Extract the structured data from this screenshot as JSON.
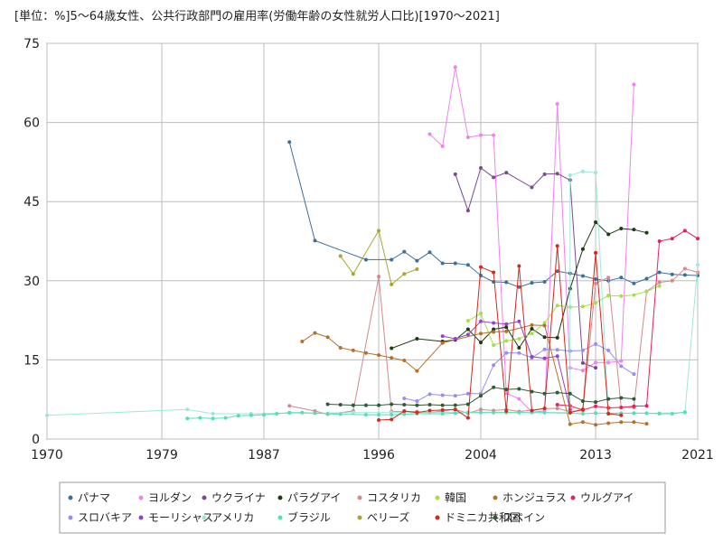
{
  "chart_data": {
    "type": "line",
    "title": "[単位：%]5～64歳女性、公共行政部門の雇用率(労働年齢の女性就労人口比)[1970～2021]",
    "xlabel": "",
    "ylabel": "",
    "xlim": [
      1970,
      2021
    ],
    "ylim": [
      0,
      75
    ],
    "x_ticks": [
      1970,
      1979,
      1987,
      1996,
      2004,
      2013,
      2021
    ],
    "y_ticks": [
      0,
      15,
      30,
      45,
      60,
      75
    ],
    "grid": true,
    "legend_position": "bottom",
    "series": [
      {
        "name": "パナマ",
        "color": "#3d6f9b",
        "points": [
          [
            1989,
            56.3
          ],
          [
            1991,
            37.6
          ],
          [
            1995,
            34.0
          ],
          [
            1997,
            34.0
          ],
          [
            1998,
            35.5
          ],
          [
            1999,
            33.8
          ],
          [
            2000,
            35.4
          ],
          [
            2001,
            33.3
          ],
          [
            2002,
            33.3
          ],
          [
            2003,
            33.0
          ],
          [
            2004,
            31.0
          ],
          [
            2005,
            29.8
          ],
          [
            2006,
            29.7
          ],
          [
            2007,
            28.8
          ],
          [
            2008,
            29.6
          ],
          [
            2009,
            29.8
          ],
          [
            2010,
            31.8
          ],
          [
            2011,
            31.4
          ],
          [
            2012,
            30.9
          ],
          [
            2013,
            30.3
          ],
          [
            2014,
            30.0
          ],
          [
            2015,
            30.6
          ],
          [
            2016,
            29.5
          ],
          [
            2017,
            30.4
          ],
          [
            2018,
            31.6
          ],
          [
            2019,
            31.2
          ],
          [
            2020,
            31.1
          ],
          [
            2021,
            31.0
          ]
        ]
      },
      {
        "name": "ヨルダン",
        "color": "#ee82ee",
        "points": [
          [
            2000,
            57.8
          ],
          [
            2001,
            55.5
          ],
          [
            2002,
            70.5
          ],
          [
            2003,
            57.2
          ],
          [
            2004,
            57.6
          ],
          [
            2005,
            57.6
          ],
          [
            2006,
            8.7
          ],
          [
            2007,
            7.6
          ],
          [
            2008,
            5.1
          ],
          [
            2009,
            5.3
          ],
          [
            2010,
            63.5
          ],
          [
            2011,
            13.5
          ],
          [
            2012,
            13.0
          ],
          [
            2013,
            14.5
          ],
          [
            2014,
            14.5
          ],
          [
            2015,
            14.8
          ],
          [
            2016,
            67.2
          ]
        ]
      },
      {
        "name": "ウクライナ",
        "color": "#7a4a8f",
        "points": [
          [
            2002,
            50.2
          ],
          [
            2003,
            43.3
          ],
          [
            2004,
            51.4
          ],
          [
            2005,
            49.6
          ],
          [
            2006,
            50.5
          ],
          [
            2008,
            47.7
          ],
          [
            2009,
            50.2
          ],
          [
            2010,
            50.3
          ],
          [
            2011,
            49.1
          ],
          [
            2012,
            14.4
          ],
          [
            2013,
            13.5
          ]
        ]
      },
      {
        "name": "パラグアイ",
        "color": "#1f3a12",
        "points": [
          [
            1997,
            17.2
          ],
          [
            1999,
            19.0
          ],
          [
            2001,
            18.5
          ],
          [
            2002,
            18.8
          ],
          [
            2003,
            20.8
          ],
          [
            2004,
            18.3
          ],
          [
            2005,
            20.8
          ],
          [
            2006,
            21.2
          ],
          [
            2007,
            17.3
          ],
          [
            2008,
            20.9
          ],
          [
            2009,
            19.3
          ],
          [
            2010,
            19.2
          ],
          [
            2011,
            28.5
          ],
          [
            2012,
            36.0
          ],
          [
            2013,
            41.1
          ],
          [
            2014,
            38.8
          ],
          [
            2015,
            39.9
          ],
          [
            2016,
            39.7
          ],
          [
            2017,
            39.1
          ]
        ]
      },
      {
        "name": "コスタリカ",
        "color": "#d4898a",
        "points": [
          [
            1989,
            6.3
          ],
          [
            1991,
            5.3
          ],
          [
            1992,
            4.7
          ],
          [
            1994,
            5.3
          ],
          [
            1996,
            30.8
          ],
          [
            1997,
            5.2
          ],
          [
            1999,
            5.2
          ],
          [
            2000,
            5.0
          ],
          [
            2001,
            5.3
          ],
          [
            2002,
            5.6
          ],
          [
            2003,
            4.9
          ],
          [
            2004,
            5.6
          ],
          [
            2005,
            5.4
          ],
          [
            2006,
            5.6
          ],
          [
            2007,
            5.2
          ],
          [
            2009,
            5.8
          ],
          [
            2010,
            5.8
          ],
          [
            2011,
            5.2
          ],
          [
            2012,
            5.5
          ],
          [
            2013,
            29.5
          ],
          [
            2014,
            30.6
          ],
          [
            2015,
            6.0
          ],
          [
            2016,
            6.0
          ],
          [
            2017,
            28.0
          ],
          [
            2018,
            29.7
          ],
          [
            2019,
            30.0
          ],
          [
            2020,
            32.3
          ],
          [
            2021,
            31.6
          ]
        ]
      },
      {
        "name": "韓国",
        "color": "#a3e04a",
        "points": [
          [
            2003,
            22.4
          ],
          [
            2004,
            23.8
          ],
          [
            2005,
            17.8
          ],
          [
            2006,
            18.6
          ],
          [
            2007,
            19.0
          ],
          [
            2008,
            20.0
          ],
          [
            2009,
            22.0
          ],
          [
            2010,
            25.3
          ],
          [
            2011,
            25.0
          ],
          [
            2012,
            25.1
          ],
          [
            2013,
            25.8
          ],
          [
            2014,
            27.2
          ],
          [
            2015,
            27.1
          ],
          [
            2016,
            27.3
          ],
          [
            2017,
            28.0
          ],
          [
            2018,
            29.0
          ]
        ]
      },
      {
        "name": "ホンジュラス",
        "color": "#b5702a",
        "points": [
          [
            1990,
            18.5
          ],
          [
            1991,
            20.1
          ],
          [
            1992,
            19.3
          ],
          [
            1993,
            17.3
          ],
          [
            1994,
            16.8
          ],
          [
            1995,
            16.3
          ],
          [
            1996,
            15.9
          ],
          [
            1997,
            15.4
          ],
          [
            1998,
            14.9
          ],
          [
            1999,
            12.9
          ],
          [
            2001,
            18.2
          ],
          [
            2004,
            20.0
          ],
          [
            2005,
            20.3
          ],
          [
            2006,
            20.4
          ],
          [
            2008,
            21.6
          ],
          [
            2009,
            21.5
          ],
          [
            2011,
            2.8
          ],
          [
            2012,
            3.2
          ],
          [
            2013,
            2.7
          ],
          [
            2014,
            3.0
          ],
          [
            2015,
            3.2
          ],
          [
            2016,
            3.2
          ],
          [
            2017,
            2.9
          ]
        ]
      },
      {
        "name": "ウルグアイ",
        "color": "#e0255a",
        "points": [
          [
            2010,
            6.5
          ],
          [
            2011,
            6.3
          ],
          [
            2012,
            5.5
          ],
          [
            2013,
            6.2
          ],
          [
            2014,
            5.9
          ],
          [
            2015,
            6.0
          ],
          [
            2016,
            6.2
          ],
          [
            2017,
            6.3
          ],
          [
            2018,
            37.5
          ],
          [
            2019,
            38.0
          ],
          [
            2020,
            39.5
          ],
          [
            2021,
            38.0
          ]
        ]
      },
      {
        "name": "スロバキア",
        "color": "#9b8cf0",
        "points": [
          [
            1998,
            7.7
          ],
          [
            1999,
            7.2
          ],
          [
            2000,
            8.5
          ],
          [
            2001,
            8.3
          ],
          [
            2002,
            8.2
          ],
          [
            2003,
            8.6
          ],
          [
            2004,
            8.6
          ],
          [
            2005,
            14.0
          ],
          [
            2006,
            16.3
          ],
          [
            2007,
            16.3
          ],
          [
            2008,
            15.4
          ],
          [
            2009,
            17.0
          ],
          [
            2010,
            16.9
          ],
          [
            2011,
            16.7
          ],
          [
            2012,
            16.8
          ],
          [
            2013,
            18.0
          ],
          [
            2014,
            16.8
          ],
          [
            2015,
            13.8
          ],
          [
            2016,
            12.3
          ]
        ]
      },
      {
        "name": "モーリシャス",
        "color": "#9a3fc9",
        "points": [
          [
            2001,
            19.5
          ],
          [
            2002,
            19.0
          ],
          [
            2003,
            19.8
          ],
          [
            2004,
            22.3
          ],
          [
            2005,
            22.0
          ],
          [
            2006,
            21.8
          ],
          [
            2007,
            22.3
          ],
          [
            2008,
            15.6
          ],
          [
            2009,
            15.3
          ],
          [
            2010,
            15.7
          ],
          [
            2011,
            5.6
          ]
        ]
      },
      {
        "name": "アメリカ",
        "color": "#9ee8da",
        "points": [
          [
            1970,
            4.5
          ],
          [
            1981,
            5.6
          ],
          [
            1983,
            4.8
          ],
          [
            1986,
            4.8
          ],
          [
            1989,
            4.9
          ],
          [
            1991,
            4.9
          ],
          [
            1994,
            5.0
          ],
          [
            1997,
            5.0
          ],
          [
            2000,
            5.0
          ],
          [
            2003,
            5.1
          ],
          [
            2006,
            5.1
          ],
          [
            2009,
            5.0
          ],
          [
            2011,
            5.0
          ],
          [
            2011,
            50.0
          ],
          [
            2012,
            50.7
          ],
          [
            2013,
            50.5
          ],
          [
            2014,
            4.8
          ],
          [
            2016,
            4.9
          ],
          [
            2018,
            4.9
          ],
          [
            2020,
            5.0
          ],
          [
            2021,
            33.0
          ]
        ]
      },
      {
        "name": "ブラジル",
        "color": "#52e0b8",
        "points": [
          [
            1981,
            3.9
          ],
          [
            1982,
            4.0
          ],
          [
            1983,
            3.9
          ],
          [
            1984,
            4.0
          ],
          [
            1985,
            4.4
          ],
          [
            1986,
            4.5
          ],
          [
            1987,
            4.6
          ],
          [
            1988,
            4.8
          ],
          [
            1989,
            5.0
          ],
          [
            1990,
            5.0
          ],
          [
            1991,
            4.9
          ],
          [
            1992,
            4.8
          ],
          [
            1993,
            4.7
          ],
          [
            1995,
            4.6
          ],
          [
            1996,
            4.6
          ],
          [
            1997,
            4.6
          ],
          [
            1998,
            4.7
          ],
          [
            1999,
            4.8
          ],
          [
            2001,
            4.8
          ],
          [
            2002,
            4.9
          ],
          [
            2003,
            5.0
          ],
          [
            2004,
            5.0
          ],
          [
            2005,
            5.0
          ],
          [
            2006,
            5.0
          ],
          [
            2007,
            5.0
          ],
          [
            2008,
            5.0
          ],
          [
            2009,
            5.0
          ],
          [
            2011,
            4.9
          ],
          [
            2012,
            4.8
          ],
          [
            2013,
            4.9
          ],
          [
            2014,
            4.9
          ],
          [
            2015,
            4.9
          ],
          [
            2016,
            4.9
          ],
          [
            2017,
            4.9
          ],
          [
            2018,
            4.8
          ],
          [
            2019,
            4.8
          ],
          [
            2020,
            5.1
          ]
        ]
      },
      {
        "name": "ベリーズ",
        "color": "#a8a532",
        "points": [
          [
            1993,
            34.7
          ],
          [
            1994,
            31.3
          ],
          [
            1996,
            39.5
          ],
          [
            1997,
            29.3
          ],
          [
            1998,
            31.3
          ],
          [
            1999,
            32.2
          ]
        ]
      },
      {
        "name": "ドミニカ共和国",
        "color": "#cf2b1e",
        "points": [
          [
            1996,
            3.6
          ],
          [
            1997,
            3.7
          ],
          [
            1998,
            5.3
          ],
          [
            1999,
            5.0
          ],
          [
            2000,
            5.4
          ],
          [
            2001,
            5.5
          ],
          [
            2002,
            5.6
          ],
          [
            2003,
            4.0
          ],
          [
            2004,
            32.6
          ],
          [
            2005,
            31.6
          ],
          [
            2006,
            5.3
          ],
          [
            2007,
            32.8
          ],
          [
            2008,
            5.4
          ],
          [
            2009,
            5.8
          ],
          [
            2010,
            36.6
          ],
          [
            2011,
            5.0
          ],
          [
            2012,
            5.6
          ],
          [
            2013,
            35.3
          ],
          [
            2014,
            4.8
          ],
          [
            2015,
            4.5
          ]
        ]
      },
      {
        "name": "スペイン",
        "color": "#2f5a3a",
        "points": [
          [
            1992,
            6.6
          ],
          [
            1993,
            6.5
          ],
          [
            1994,
            6.4
          ],
          [
            1995,
            6.4
          ],
          [
            1996,
            6.4
          ],
          [
            1997,
            6.6
          ],
          [
            1998,
            6.5
          ],
          [
            1999,
            6.4
          ],
          [
            2000,
            6.5
          ],
          [
            2001,
            6.4
          ],
          [
            2002,
            6.4
          ],
          [
            2003,
            6.6
          ],
          [
            2004,
            8.2
          ],
          [
            2005,
            9.8
          ],
          [
            2006,
            9.4
          ],
          [
            2007,
            9.5
          ],
          [
            2008,
            9.0
          ],
          [
            2009,
            8.6
          ],
          [
            2010,
            8.8
          ],
          [
            2011,
            8.6
          ],
          [
            2012,
            7.2
          ],
          [
            2013,
            7.0
          ],
          [
            2014,
            7.6
          ],
          [
            2015,
            7.8
          ],
          [
            2016,
            7.6
          ]
        ]
      }
    ]
  }
}
